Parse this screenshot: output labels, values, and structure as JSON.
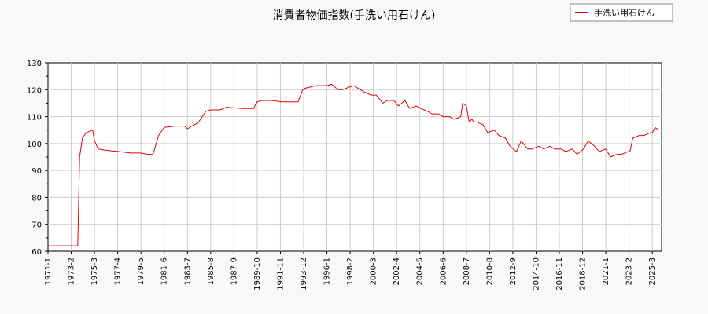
{
  "chart_data": {
    "type": "line",
    "title": "消費者物価指数(手洗い用石けん)",
    "xlabel": "",
    "ylabel": "",
    "grid": true,
    "legend_position": "top-right",
    "ylim": [
      60,
      130
    ],
    "xlim": [
      "1971-01",
      "2026-01"
    ],
    "x_tick_labels": [
      "1971-1",
      "1973-2",
      "1975-3",
      "1977-4",
      "1979-5",
      "1981-6",
      "1983-7",
      "1985-8",
      "1987-9",
      "1989-10",
      "1991-11",
      "1993-12",
      "1996-1",
      "1998-2",
      "2000-3",
      "2002-4",
      "2004-5",
      "2006-6",
      "2008-7",
      "2010-8",
      "2012-9",
      "2014-10",
      "2016-11",
      "2018-12",
      "2021-1",
      "2023-2",
      "2025-3"
    ],
    "y_ticks": [
      60,
      70,
      80,
      90,
      100,
      110,
      120,
      130
    ],
    "series": [
      {
        "name": "手洗い用石けん",
        "color": "#e00000",
        "x": [
          "1971-01",
          "1973-06",
          "1973-09",
          "1973-11",
          "1974-02",
          "1974-06",
          "1975-01",
          "1975-03",
          "1975-07",
          "1976-03",
          "1977-06",
          "1978-06",
          "1979-04",
          "1980-01",
          "1980-06",
          "1980-12",
          "1981-06",
          "1982-06",
          "1983-04",
          "1983-07",
          "1984-02",
          "1984-06",
          "1985-03",
          "1985-08",
          "1986-06",
          "1987-01",
          "1988-06",
          "1989-06",
          "1989-10",
          "1990-03",
          "1991-01",
          "1992-01",
          "1993-06",
          "1993-11",
          "1994-01",
          "1995-01",
          "1996-01",
          "1996-06",
          "1997-01",
          "1997-06",
          "1998-01",
          "1998-06",
          "1999-01",
          "1999-06",
          "2000-01",
          "2000-06",
          "2001-01",
          "2001-06",
          "2002-01",
          "2002-06",
          "2003-01",
          "2003-06",
          "2004-01",
          "2004-06",
          "2005-01",
          "2005-06",
          "2006-01",
          "2006-06",
          "2007-01",
          "2007-06",
          "2008-01",
          "2008-03",
          "2008-07",
          "2008-10",
          "2009-01",
          "2009-03",
          "2009-06",
          "2010-01",
          "2010-06",
          "2011-01",
          "2011-06",
          "2012-01",
          "2012-06",
          "2013-01",
          "2013-06",
          "2014-01",
          "2014-06",
          "2015-01",
          "2015-06",
          "2016-01",
          "2016-06",
          "2017-01",
          "2017-06",
          "2018-01",
          "2018-06",
          "2019-01",
          "2019-06",
          "2020-01",
          "2020-06",
          "2021-01",
          "2021-06",
          "2022-01",
          "2022-06",
          "2023-01",
          "2023-03",
          "2023-06",
          "2024-01",
          "2024-06",
          "2025-01",
          "2025-03",
          "2025-06",
          "2025-10"
        ],
        "values": [
          62,
          62,
          62,
          95,
          102,
          104,
          105,
          101,
          98,
          97.5,
          97,
          96.5,
          96.5,
          96,
          96,
          103,
          106,
          106.5,
          106.5,
          105.5,
          107,
          107.5,
          112,
          112.5,
          112.5,
          113.5,
          113,
          113,
          115.5,
          116,
          116,
          115.5,
          115.5,
          120,
          120.5,
          121.5,
          121.5,
          122,
          120,
          120,
          121,
          121.5,
          120,
          119,
          118,
          118,
          115,
          116,
          116,
          114,
          116,
          113,
          114,
          113,
          112,
          111,
          111,
          110,
          110,
          109,
          110,
          115,
          114,
          108,
          109,
          108,
          108,
          107,
          104,
          105,
          103,
          102,
          99,
          97,
          101,
          98,
          98,
          99,
          98,
          99,
          98,
          98,
          97,
          98,
          96,
          98,
          101,
          99,
          97,
          98,
          95,
          96,
          96,
          97,
          97,
          102,
          103,
          103,
          104,
          104,
          106,
          105
        ]
      }
    ]
  }
}
